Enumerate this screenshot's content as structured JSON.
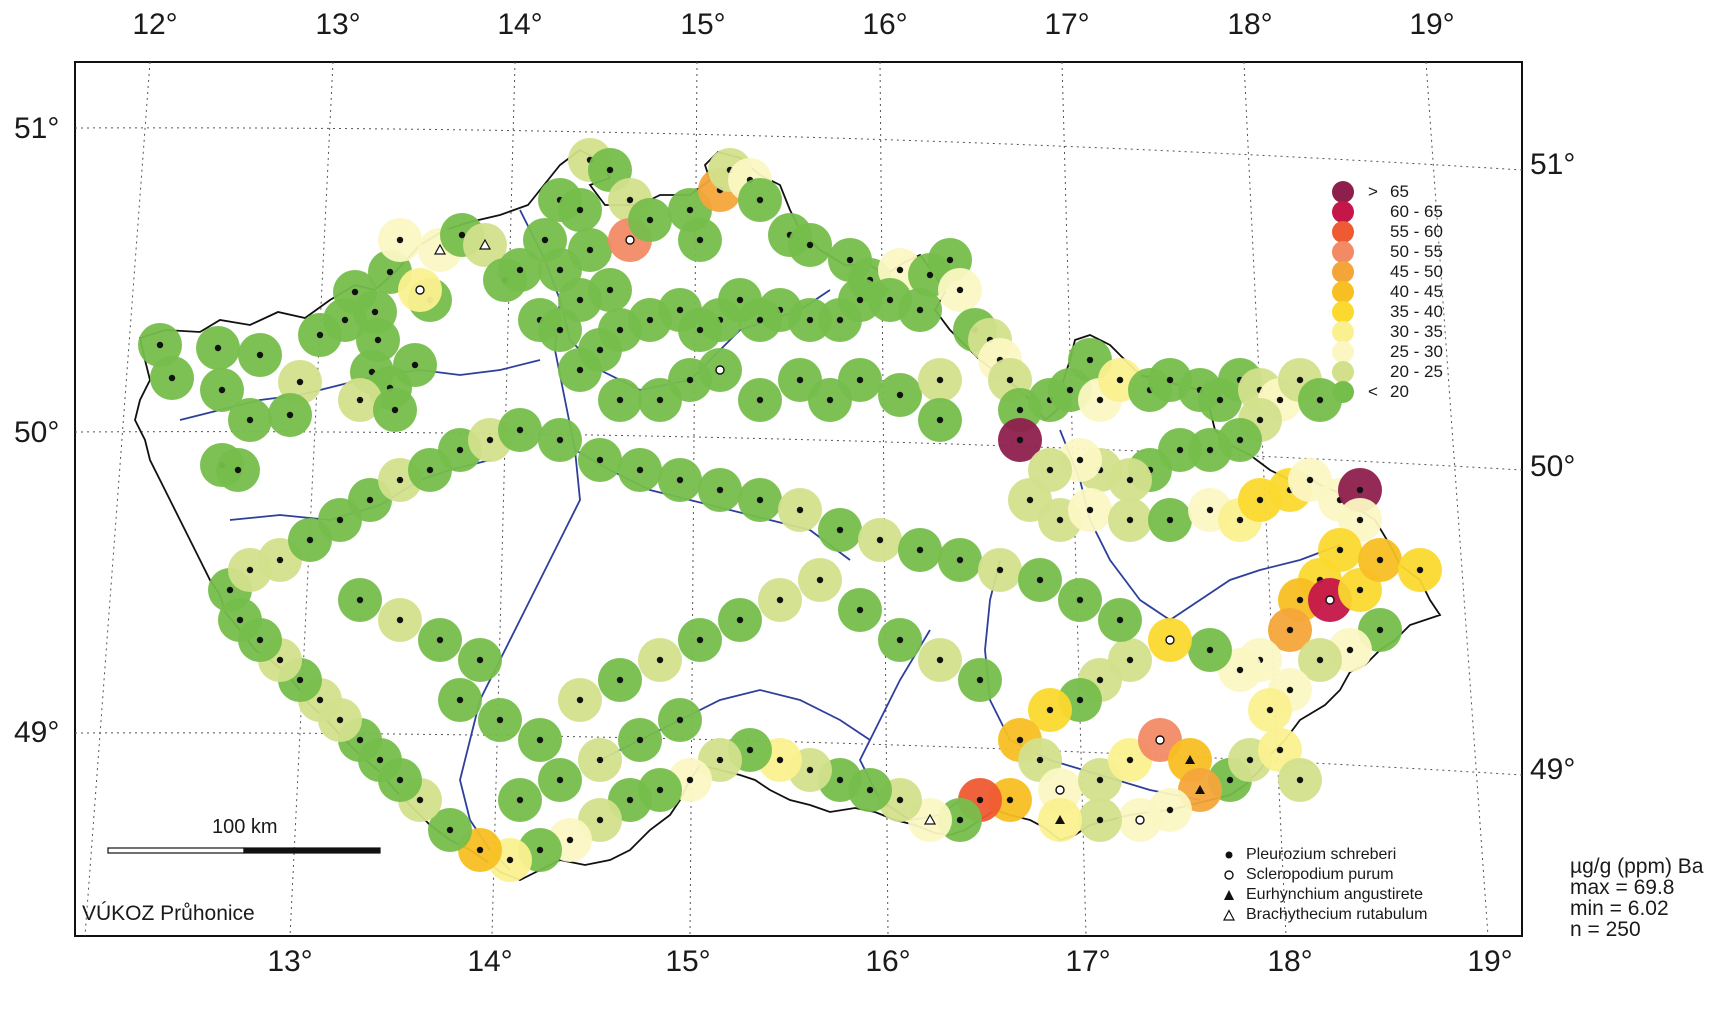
{
  "map": {
    "top_lon_labels": [
      "12°",
      "13°",
      "14°",
      "15°",
      "16°",
      "17°",
      "18°",
      "19°"
    ],
    "bottom_lon_labels": [
      "13°",
      "14°",
      "15°",
      "16°",
      "17°",
      "18°",
      "19°"
    ],
    "left_lat_labels": [
      "51°",
      "50°",
      "49°"
    ],
    "right_lat_labels": [
      "51°",
      "50°",
      "49°"
    ],
    "scale_label": "100 km",
    "credit": "VÚKOZ Průhonice"
  },
  "legend": {
    "classes": [
      {
        "op": ">",
        "range": "65",
        "color": "#8e1f4d"
      },
      {
        "op": "",
        "range": "60  -  65",
        "color": "#c5164a"
      },
      {
        "op": "",
        "range": "55  -  60",
        "color": "#ee5a32"
      },
      {
        "op": "",
        "range": "50  -  55",
        "color": "#f28a66"
      },
      {
        "op": "",
        "range": "45  -  50",
        "color": "#f4a53a"
      },
      {
        "op": "",
        "range": "40  -  45",
        "color": "#f8bf23"
      },
      {
        "op": "",
        "range": "35  -  40",
        "color": "#fbd92e"
      },
      {
        "op": "",
        "range": "30  -  35",
        "color": "#fbf08f"
      },
      {
        "op": "",
        "range": "25  -  30",
        "color": "#fbf7c3"
      },
      {
        "op": "",
        "range": "20  -  25",
        "color": "#d2e08c"
      },
      {
        "op": "<",
        "range": "20",
        "color": "#76be4c"
      }
    ],
    "species": [
      {
        "symbol": "filled-circle",
        "name": "Pleurozium  schreberi"
      },
      {
        "symbol": "open-circle",
        "name": "Scleropodium  purum"
      },
      {
        "symbol": "filled-triangle",
        "name": "Eurhynchium  angustirete"
      },
      {
        "symbol": "open-triangle",
        "name": "Brachythecium  rutabulum"
      }
    ]
  },
  "stats": {
    "unit_line": "µg/g (ppm) Ba",
    "max_line": "max = 69.8",
    "min_line": "min =  6.02",
    "n_line": "n = 250"
  }
}
